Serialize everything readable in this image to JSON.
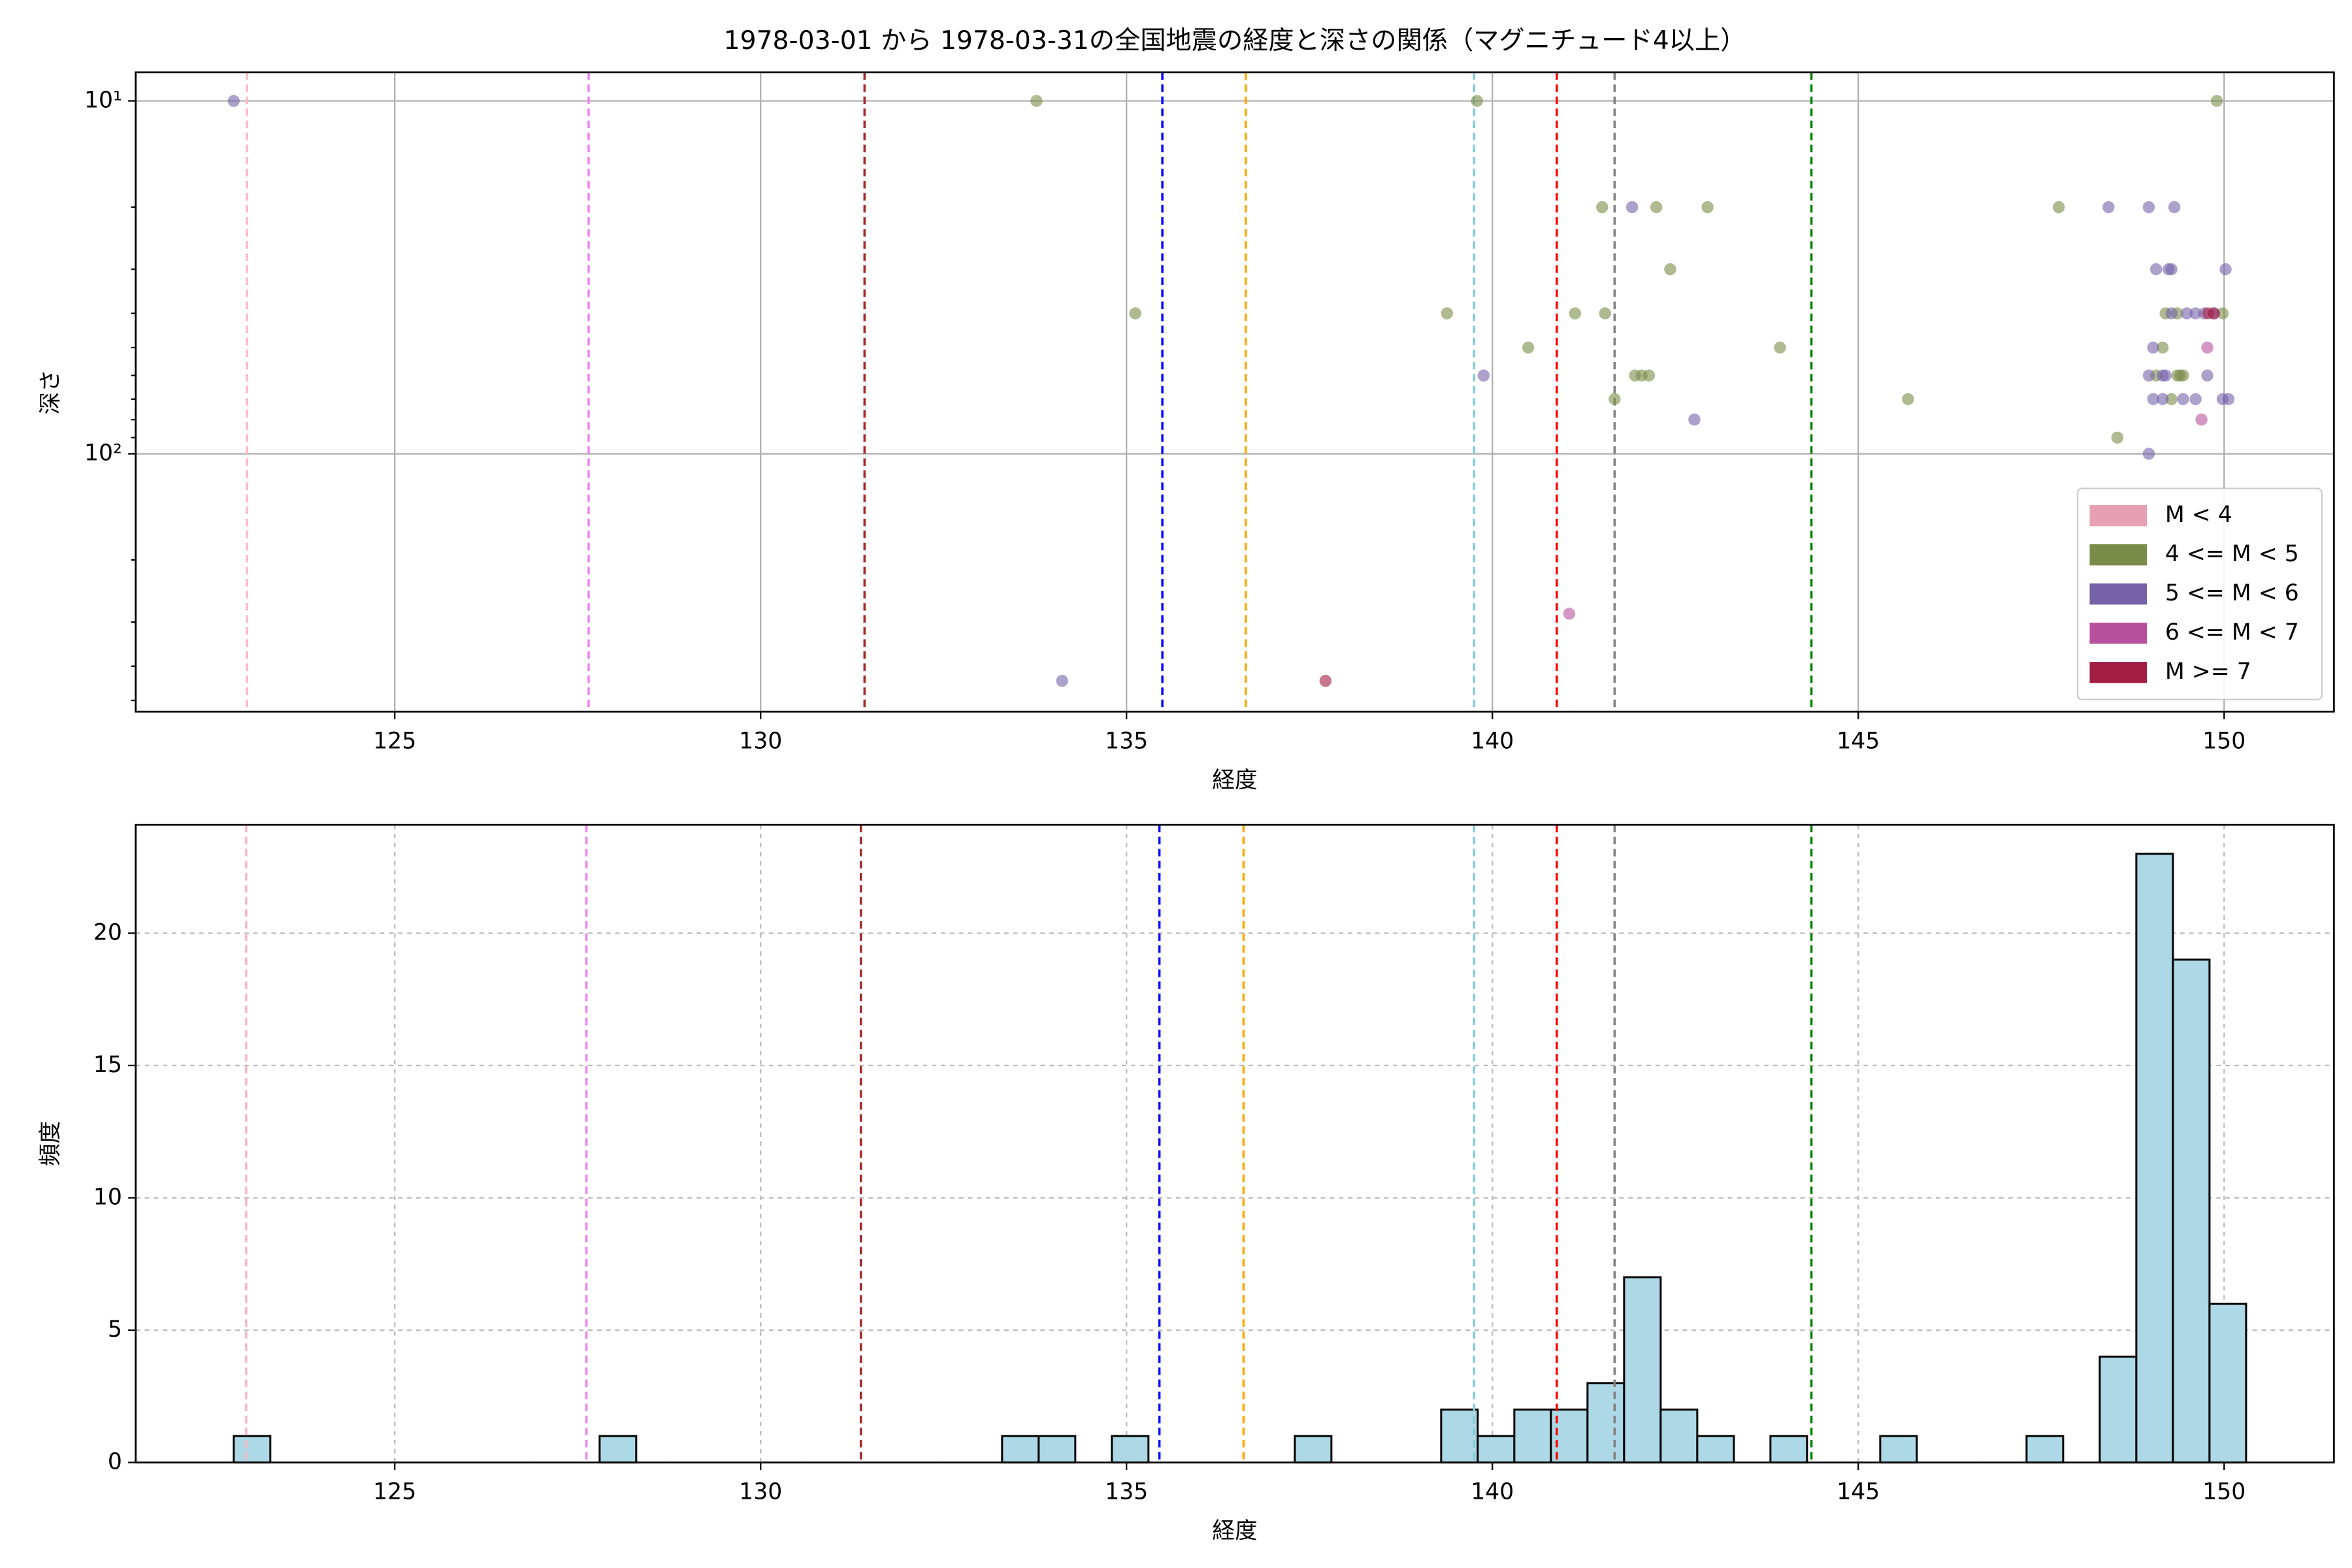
{
  "chart_data": [
    {
      "type": "scatter",
      "title": "1978-03-01 から 1978-03-31の全国地震の経度と深さの関係（マグニチュード4以上）",
      "xlabel": "経度",
      "ylabel": "深さ",
      "xlim": [
        121.46,
        151.5
      ],
      "xticks": [
        125,
        130,
        135,
        140,
        145,
        150
      ],
      "ylim": [
        8.3,
        538
      ],
      "y_log": true,
      "y_inverted": true,
      "yticks": [
        {
          "value": 10,
          "label": "10¹"
        },
        {
          "value": 100,
          "label": "10²"
        }
      ],
      "yminorticks": [
        20,
        30,
        40,
        50,
        60,
        70,
        80,
        90,
        200,
        300,
        400,
        500
      ],
      "grid": true,
      "grid_linestyle": "solid",
      "legend": "lower right",
      "vlines": [
        {
          "x": 122.98,
          "color": "#ffb6c1"
        },
        {
          "x": 127.65,
          "color": "#ee82ee"
        },
        {
          "x": 131.42,
          "color": "#a52a2a"
        },
        {
          "x": 135.49,
          "color": "#0000ff"
        },
        {
          "x": 136.63,
          "color": "#ffa500"
        },
        {
          "x": 139.75,
          "color": "#7fcfd8"
        },
        {
          "x": 140.88,
          "color": "#ff0000"
        },
        {
          "x": 141.67,
          "color": "#808080"
        },
        {
          "x": 144.36,
          "color": "#008000"
        }
      ],
      "series": [
        {
          "name": "M < 4",
          "color": "#e79fb5",
          "x": [],
          "values": []
        },
        {
          "name": "4 <= M < 5",
          "color": "#7b8c48",
          "x": [
            133.77,
            139.79,
            149.9,
            135.12,
            139.38,
            140.49,
            141.5,
            142.24,
            142.94,
            141.13,
            141.54,
            142.43,
            141.67,
            141.95,
            142.04,
            142.14,
            143.93,
            145.68,
            147.74,
            148.54,
            149.2,
            149.36,
            149.98,
            149.16,
            149.07,
            149.36,
            149.44,
            149.4,
            149.28
          ],
          "values": [
            10,
            10,
            10,
            40,
            40,
            50,
            20,
            20,
            20,
            40,
            40,
            30,
            70,
            60,
            60,
            60,
            50,
            70,
            20,
            90,
            40,
            40,
            40,
            50,
            60,
            60,
            60,
            60,
            70
          ]
        },
        {
          "name": "5 <= M < 6",
          "color": "#7563a9",
          "x": [
            122.8,
            134.12,
            139.88,
            141.91,
            142.76,
            148.42,
            148.97,
            149.32,
            148.97,
            149.07,
            149.24,
            149.28,
            150.02,
            149.28,
            149.49,
            149.61,
            149.73,
            149.86,
            149.03,
            148.97,
            149.16,
            149.2,
            149.77,
            149.03,
            149.16,
            149.44,
            149.61,
            149.98,
            150.06
          ],
          "values": [
            10,
            440,
            60,
            20,
            80,
            20,
            20,
            20,
            100,
            30,
            30,
            30,
            30,
            40,
            40,
            40,
            40,
            40,
            50,
            60,
            60,
            60,
            60,
            70,
            70,
            70,
            70,
            70,
            70
          ]
        },
        {
          "name": "6 <= M < 7",
          "color": "#b7519b",
          "x": [
            141.05,
            149.77,
            149.69
          ],
          "values": [
            284,
            50,
            80
          ]
        },
        {
          "name": "M >= 7",
          "color": "#a31c43",
          "x": [
            137.72,
            149.78,
            149.86
          ],
          "values": [
            440,
            40,
            40
          ]
        }
      ]
    },
    {
      "type": "histogram",
      "xlabel": "経度",
      "ylabel": "頻度",
      "xlim": [
        121.46,
        151.5
      ],
      "xticks": [
        125,
        130,
        135,
        140,
        145,
        150
      ],
      "ylim": [
        0,
        24.1
      ],
      "yticks": [
        0,
        5,
        10,
        15,
        20
      ],
      "grid": true,
      "grid_linestyle": "dashed",
      "color": "#add8e6",
      "edgecolor": "#000000",
      "vlines": [
        {
          "x": 122.97,
          "color": "#ffb6c1"
        },
        {
          "x": 127.62,
          "color": "#ee82ee"
        },
        {
          "x": 131.37,
          "color": "#a52a2a"
        },
        {
          "x": 135.45,
          "color": "#0000ff"
        },
        {
          "x": 136.6,
          "color": "#ffa500"
        },
        {
          "x": 139.75,
          "color": "#7fcfd8"
        },
        {
          "x": 140.88,
          "color": "#ff0000"
        },
        {
          "x": 141.67,
          "color": "#808080"
        },
        {
          "x": 144.36,
          "color": "#008000"
        }
      ],
      "bins": [
        122.8,
        123.3,
        123.8,
        124.3,
        124.8,
        125.3,
        125.8,
        126.3,
        126.8,
        127.3,
        127.8,
        128.3,
        128.8,
        129.3,
        129.8,
        130.3,
        130.8,
        131.3,
        131.8,
        132.3,
        132.8,
        133.3,
        133.8,
        134.3,
        134.8,
        135.3,
        135.8,
        136.3,
        136.8,
        137.3,
        137.8,
        138.3,
        138.8,
        139.3,
        139.8,
        140.3,
        140.8,
        141.3,
        141.8,
        142.3,
        142.8,
        143.3,
        143.8,
        144.3,
        144.8,
        145.3,
        145.8,
        146.3,
        146.8,
        147.3,
        147.8,
        148.3,
        148.8,
        149.3,
        149.8,
        150.3
      ],
      "values": [
        1,
        0,
        0,
        0,
        0,
        0,
        0,
        0,
        0,
        0,
        1,
        0,
        0,
        0,
        0,
        0,
        0,
        0,
        0,
        0,
        0,
        1,
        1,
        0,
        1,
        0,
        0,
        0,
        0,
        1,
        0,
        0,
        0,
        2,
        1,
        2,
        2,
        3,
        7,
        2,
        1,
        0,
        1,
        0,
        0,
        1,
        0,
        0,
        0,
        1,
        0,
        4,
        23,
        19,
        6
      ]
    }
  ]
}
